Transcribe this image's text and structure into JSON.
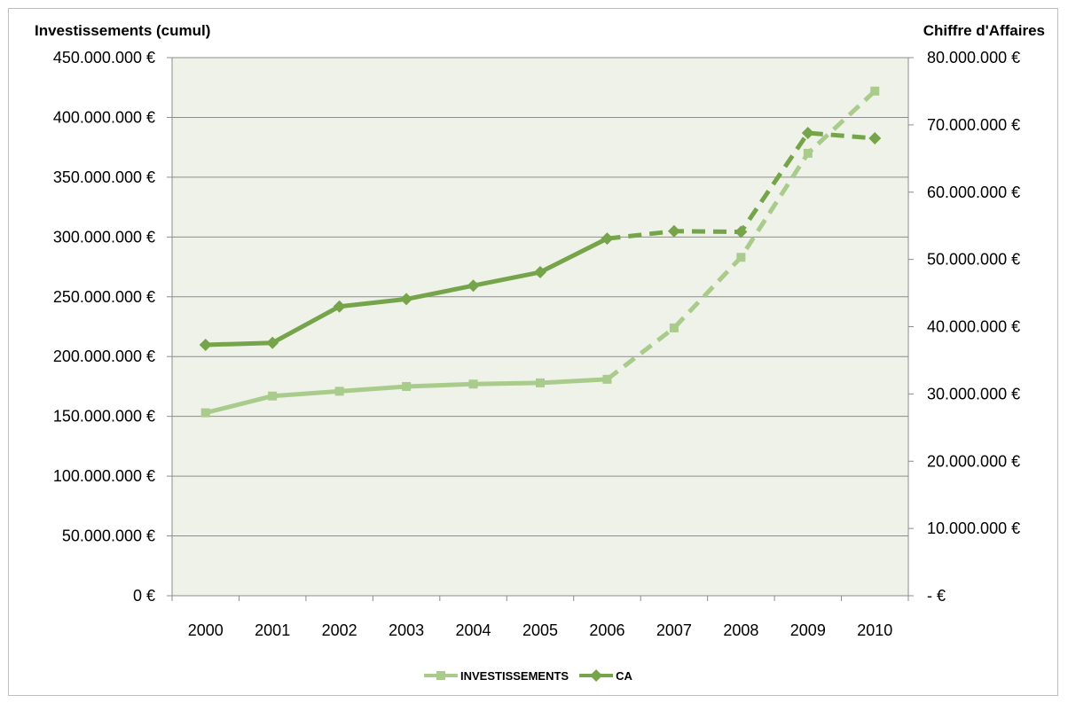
{
  "chart_data": {
    "type": "line",
    "categories": [
      "2000",
      "2001",
      "2002",
      "2003",
      "2004",
      "2005",
      "2006",
      "2007",
      "2008",
      "2009",
      "2010"
    ],
    "y_left": {
      "title": "Investissements (cumul)",
      "ylim": [
        0,
        450000000
      ],
      "step": 50000000,
      "tick_labels": [
        "0 €",
        "50.000.000 €",
        "100.000.000 €",
        "150.000.000 €",
        "200.000.000 €",
        "250.000.000 €",
        "300.000.000 €",
        "350.000.000 €",
        "400.000.000 €",
        "450.000.000 €"
      ]
    },
    "y_right": {
      "title": "Chiffre d'Affaires",
      "ylim": [
        0,
        80000000
      ],
      "step": 10000000,
      "tick_labels": [
        "- €",
        "10.000.000 €",
        "20.000.000 €",
        "30.000.000 €",
        "40.000.000 €",
        "50.000.000 €",
        "60.000.000 €",
        "70.000.000 €",
        "80.000.000 €"
      ]
    },
    "series": [
      {
        "name": "INVESTISSEMENTS",
        "axis": "left",
        "color": "#a9cb8c",
        "marker": "square",
        "solid_until_index": 6,
        "values": [
          153000000,
          167000000,
          171000000,
          175000000,
          177000000,
          178000000,
          181000000,
          224000000,
          283000000,
          370000000,
          422000000
        ]
      },
      {
        "name": "CA",
        "axis": "right",
        "color": "#76a44a",
        "marker": "diamond",
        "solid_until_index": 6,
        "values": [
          37300000,
          37600000,
          43000000,
          44100000,
          46100000,
          48100000,
          53100000,
          54200000,
          54100000,
          68800000,
          68000000
        ]
      }
    ],
    "grid": true,
    "plot_background": "#eef2e8",
    "gridline_color": "#8c8c8c",
    "legend_position": "bottom"
  }
}
